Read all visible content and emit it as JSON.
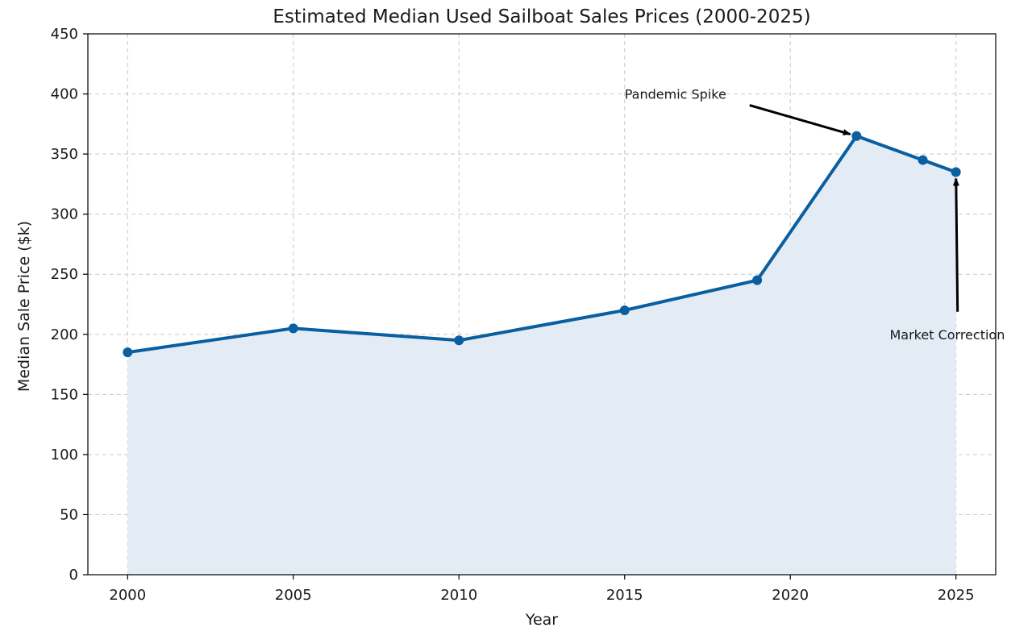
{
  "chart_data": {
    "type": "line",
    "title": "Estimated Median Used Sailboat Sales Prices (2000-2025)",
    "xlabel": "Year",
    "ylabel": "Median Sale Price ($k)",
    "x": [
      2000,
      2005,
      2010,
      2015,
      2019,
      2022,
      2024,
      2025
    ],
    "series": [
      {
        "values": [
          185,
          205,
          195,
          220,
          245,
          365,
          345,
          335
        ]
      }
    ],
    "xlim": [
      1998.8,
      2026.2
    ],
    "ylim": [
      0,
      450
    ],
    "xticks": [
      2000,
      2005,
      2010,
      2015,
      2020,
      2025
    ],
    "yticks": [
      0,
      50,
      100,
      150,
      200,
      250,
      300,
      350,
      400,
      450
    ],
    "grid": true,
    "fill_under": true,
    "line_color": "#0a5fa0",
    "fill_color": "#e3ecf5",
    "annotations": [
      {
        "text": "Pandemic Spike",
        "target_x": 2022,
        "target_y": 365,
        "text_x": 2015,
        "text_y": 400
      },
      {
        "text": "Market Correction",
        "target_x": 2025,
        "target_y": 335,
        "text_x": 2023,
        "text_y": 200
      }
    ]
  }
}
